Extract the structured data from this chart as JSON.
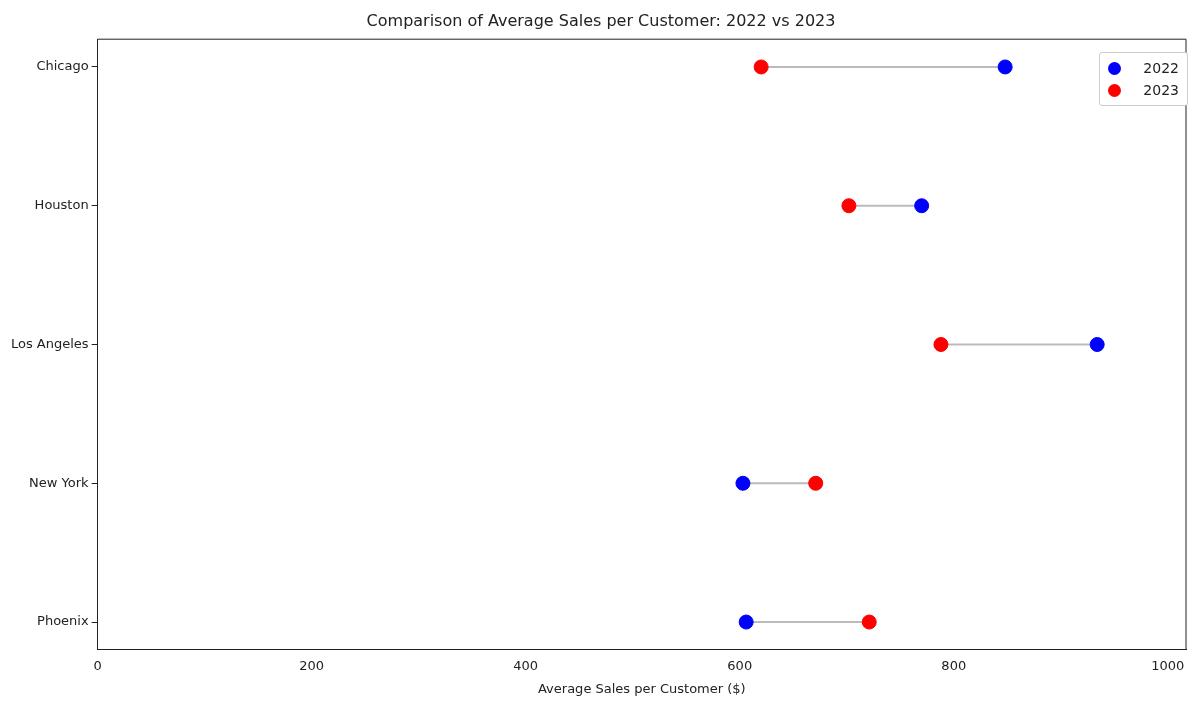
{
  "chart_data": {
    "type": "scatter",
    "orientation": "horizontal",
    "title": "Comparison of Average Sales per Customer: 2022 vs 2023",
    "xlabel": "Average Sales per Customer ($)",
    "categories": [
      "Chicago",
      "Houston",
      "Los Angeles",
      "New York",
      "Phoenix"
    ],
    "series": [
      {
        "name": "2022",
        "color": "#0000ff",
        "values": [
          848,
          770,
          934,
          603,
          606
        ]
      },
      {
        "name": "2023",
        "color": "#ff0000",
        "values": [
          620,
          702,
          788,
          671,
          721
        ]
      }
    ],
    "xlim": [
      0,
      1017
    ],
    "xticks": [
      0,
      200,
      400,
      600,
      800,
      1000
    ],
    "grid": false,
    "legend": "top right",
    "marker": "circle"
  }
}
